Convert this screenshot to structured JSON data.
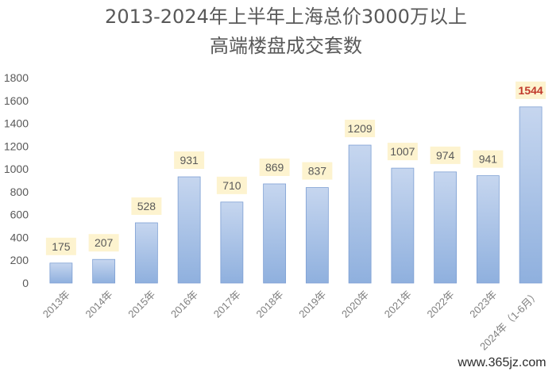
{
  "chart_data": {
    "type": "bar",
    "title_lines": [
      "2013-2024年上半年上海总价3000万以上",
      "高端楼盘成交套数"
    ],
    "categories": [
      "2013年",
      "2014年",
      "2015年",
      "2016年",
      "2017年",
      "2018年",
      "2019年",
      "2020年",
      "2021年",
      "2022年",
      "2023年",
      "2024年（1-6月）"
    ],
    "values": [
      175,
      207,
      528,
      931,
      710,
      869,
      837,
      1209,
      1007,
      974,
      941,
      1544
    ],
    "ylim": [
      0,
      1800
    ],
    "yticks": [
      0,
      200,
      400,
      600,
      800,
      1000,
      1200,
      1400,
      1600,
      1800
    ],
    "grid": false,
    "legend": "none",
    "colors": {
      "bar_top": "#c6d6ef",
      "bar_bottom": "#8fb0de",
      "bar_stroke": "#7d9fd3",
      "label_bg": "#fdf3cf",
      "label_text": "#595959",
      "highlight_text": "#c0392b"
    },
    "highlight_index": 11
  },
  "watermark": "www.365jz.com"
}
